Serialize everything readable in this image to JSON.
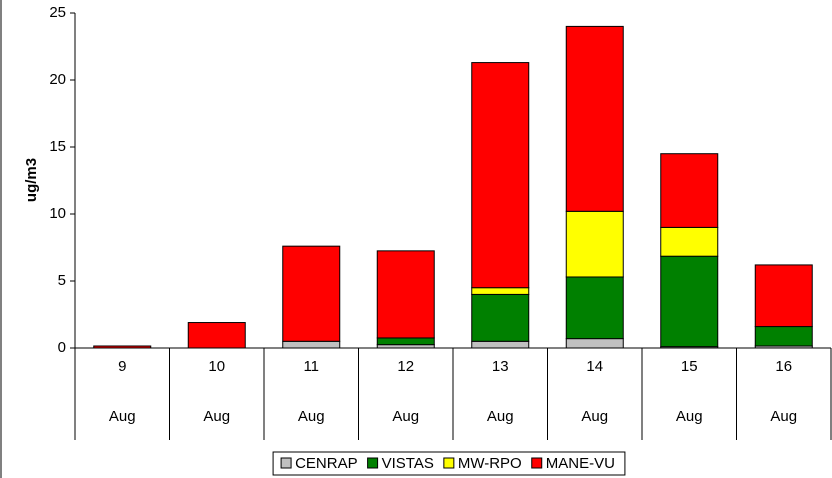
{
  "chart_data": {
    "type": "stacked-bar",
    "ylabel": "ug/m3",
    "categories": [
      "9",
      "10",
      "11",
      "12",
      "13",
      "14",
      "15",
      "16"
    ],
    "months": [
      "Aug",
      "Aug",
      "Aug",
      "Aug",
      "Aug",
      "Aug",
      "Aug",
      "Aug"
    ],
    "series": [
      {
        "name": "CENRAP",
        "color": "#c0c0c0",
        "values": [
          0,
          0,
          0.5,
          0.25,
          0.5,
          0.7,
          0.1,
          0.15
        ]
      },
      {
        "name": "VISTAS",
        "color": "#008000",
        "values": [
          0,
          0,
          0,
          0.5,
          3.5,
          4.6,
          6.75,
          1.45
        ]
      },
      {
        "name": "MW-RPO",
        "color": "#ffff00",
        "values": [
          0,
          0,
          0,
          0,
          0.5,
          4.9,
          2.15,
          0
        ]
      },
      {
        "name": "MANE-VU",
        "color": "#ff0000",
        "values": [
          0.15,
          1.9,
          7.1,
          6.5,
          16.8,
          13.8,
          5.5,
          4.6
        ]
      }
    ],
    "ylim": [
      0,
      25
    ],
    "yticks": [
      0,
      5,
      10,
      15,
      20,
      25
    ],
    "grid": false,
    "legend": "bottom"
  }
}
